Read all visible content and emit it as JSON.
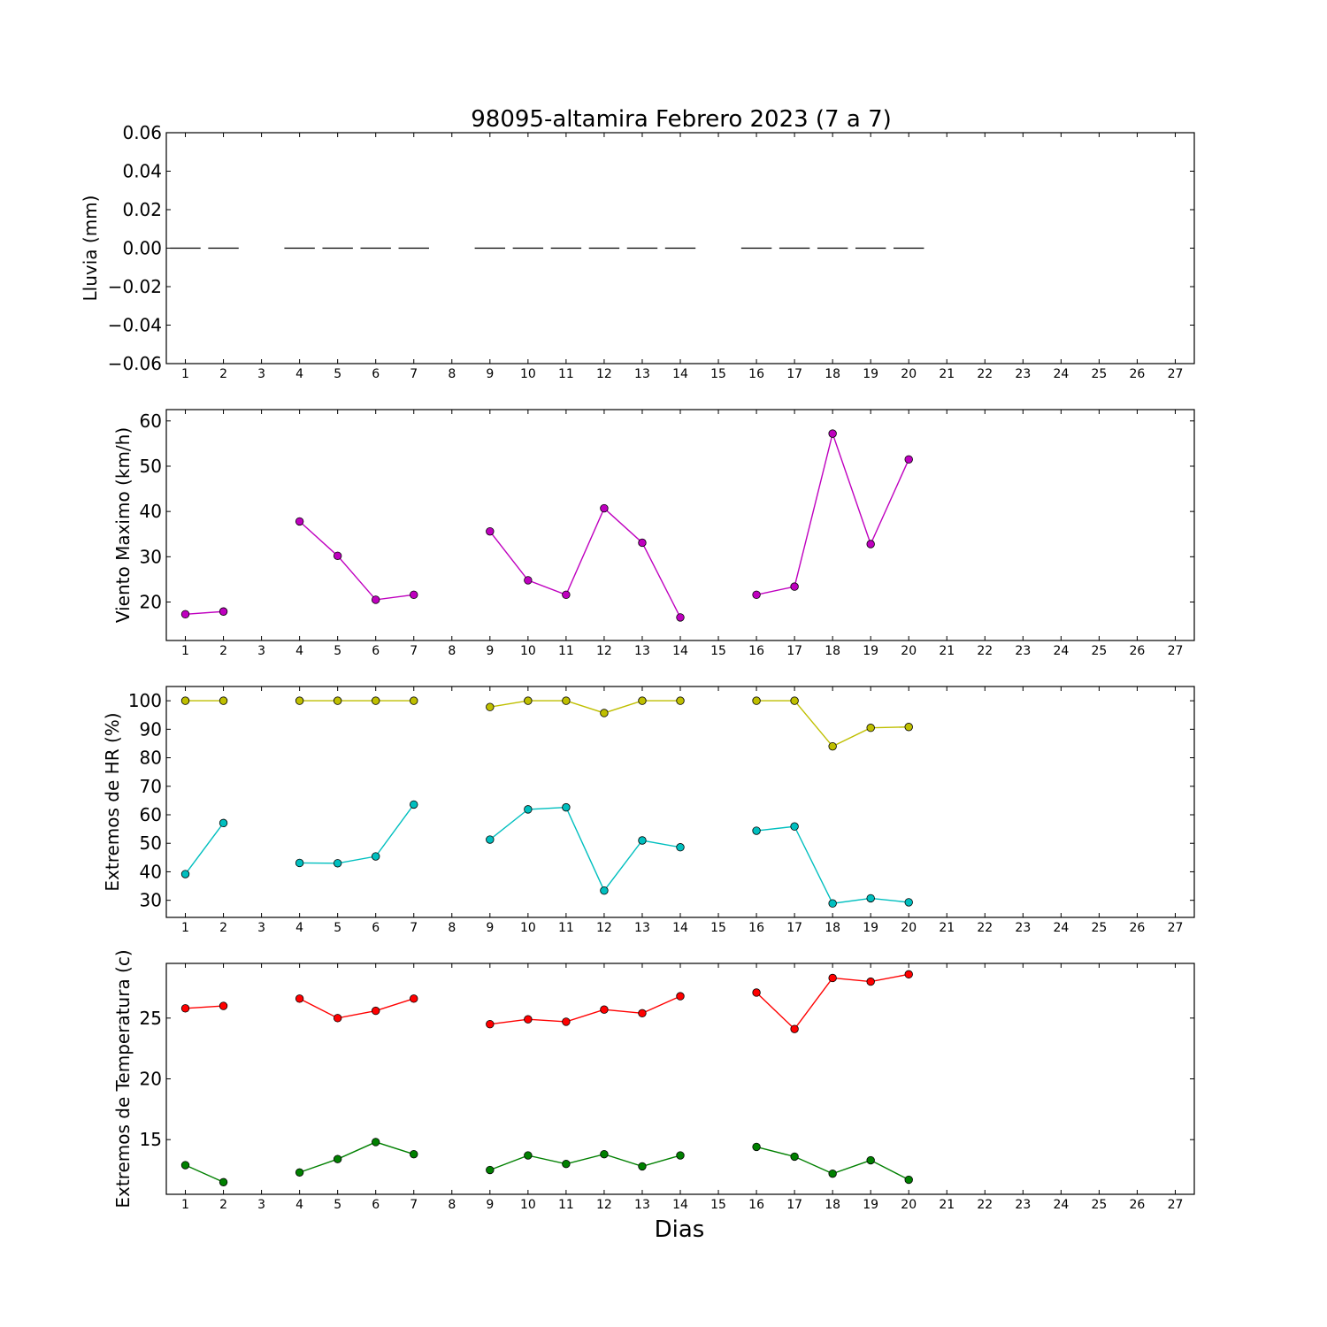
{
  "chart_data": {
    "title": "98095-altamira Febrero 2023  (7 a 7)",
    "xlabel": "Dias",
    "x_ticks": [
      "1",
      "2",
      "3",
      "4",
      "5",
      "6",
      "7",
      "8",
      "9",
      "10",
      "11",
      "12",
      "13",
      "14",
      "15",
      "16",
      "17",
      "18",
      "19",
      "20",
      "21",
      "22",
      "23",
      "24",
      "25",
      "26",
      "27"
    ],
    "xlim": [
      0.5,
      27.5
    ],
    "panels": [
      {
        "id": "rain",
        "type": "bar",
        "ylabel": "Lluvia (mm)",
        "ylim": [
          -0.06,
          0.06
        ],
        "y_ticks": [
          0.06,
          0.04,
          0.02,
          0.0,
          -0.02,
          -0.04,
          -0.06
        ],
        "y_tick_labels": [
          "0.06",
          "0.04",
          "0.02",
          "0.00",
          "−0.02",
          "−0.04",
          "−0.06"
        ],
        "series": [
          {
            "color": "#000000",
            "x": [
              1,
              2,
              4,
              5,
              6,
              7,
              9,
              10,
              11,
              12,
              13,
              14,
              16,
              17,
              18,
              19,
              20
            ],
            "y": [
              0,
              0,
              0,
              0,
              0,
              0,
              0,
              0,
              0,
              0,
              0,
              0,
              0,
              0,
              0,
              0,
              0
            ]
          }
        ]
      },
      {
        "id": "wind",
        "type": "line",
        "ylabel": "Viento Maximo (km/h)",
        "ylim": [
          11.5,
          62.5
        ],
        "y_ticks": [
          20,
          30,
          40,
          50,
          60
        ],
        "y_tick_labels": [
          "20",
          "30",
          "40",
          "50",
          "60"
        ],
        "series": [
          {
            "color": "#bf00bf",
            "x": [
              1,
              2,
              3,
              4,
              5,
              6,
              7,
              8,
              9,
              10,
              11,
              12,
              13,
              14,
              15,
              16,
              17,
              18,
              19,
              20
            ],
            "y": [
              17.3,
              17.9,
              null,
              37.8,
              30.2,
              20.5,
              21.6,
              null,
              35.6,
              24.8,
              21.6,
              40.7,
              33.1,
              16.6,
              null,
              21.6,
              23.4,
              57.2,
              32.8,
              51.5
            ]
          }
        ]
      },
      {
        "id": "humidity",
        "type": "line",
        "ylabel": "Extremos de HR (%)",
        "ylim": [
          24,
          105
        ],
        "y_ticks": [
          30,
          40,
          50,
          60,
          70,
          80,
          90,
          100
        ],
        "y_tick_labels": [
          "30",
          "40",
          "50",
          "60",
          "70",
          "80",
          "90",
          "100"
        ],
        "series": [
          {
            "color": "#bfbf00",
            "x": [
              1,
              2,
              3,
              4,
              5,
              6,
              7,
              8,
              9,
              10,
              11,
              12,
              13,
              14,
              15,
              16,
              17,
              18,
              19,
              20
            ],
            "y": [
              100,
              100,
              null,
              100,
              100,
              100,
              100,
              null,
              97.8,
              100,
              100,
              95.7,
              100,
              100,
              null,
              100,
              100,
              84,
              90.5,
              90.8
            ]
          },
          {
            "color": "#00bfbf",
            "x": [
              1,
              2,
              3,
              4,
              5,
              6,
              7,
              8,
              9,
              10,
              11,
              12,
              13,
              14,
              15,
              16,
              17,
              18,
              19,
              20
            ],
            "y": [
              39.2,
              57.1,
              null,
              43.1,
              43,
              45.4,
              63.6,
              null,
              51.3,
              61.9,
              62.6,
              33.4,
              51,
              48.6,
              null,
              54.4,
              55.9,
              28.9,
              30.7,
              29.3
            ]
          }
        ]
      },
      {
        "id": "temperature",
        "type": "line",
        "ylabel": "Extremos de Temperatura (c)",
        "ylim": [
          10.5,
          29.5
        ],
        "y_ticks": [
          15,
          20,
          25
        ],
        "y_tick_labels": [
          "15",
          "20",
          "25"
        ],
        "series": [
          {
            "color": "#ff0000",
            "x": [
              1,
              2,
              3,
              4,
              5,
              6,
              7,
              8,
              9,
              10,
              11,
              12,
              13,
              14,
              15,
              16,
              17,
              18,
              19,
              20
            ],
            "y": [
              25.8,
              26,
              null,
              26.6,
              25,
              25.6,
              26.6,
              null,
              24.5,
              24.9,
              24.7,
              25.7,
              25.4,
              26.8,
              null,
              27.1,
              24.1,
              28.3,
              28,
              28.6
            ]
          },
          {
            "color": "#008000",
            "x": [
              1,
              2,
              3,
              4,
              5,
              6,
              7,
              8,
              9,
              10,
              11,
              12,
              13,
              14,
              15,
              16,
              17,
              18,
              19,
              20
            ],
            "y": [
              12.9,
              11.5,
              null,
              12.3,
              13.4,
              14.8,
              13.8,
              null,
              12.5,
              13.7,
              13,
              13.8,
              12.8,
              13.7,
              null,
              14.4,
              13.6,
              12.2,
              13.3,
              11.7
            ]
          }
        ]
      }
    ]
  }
}
